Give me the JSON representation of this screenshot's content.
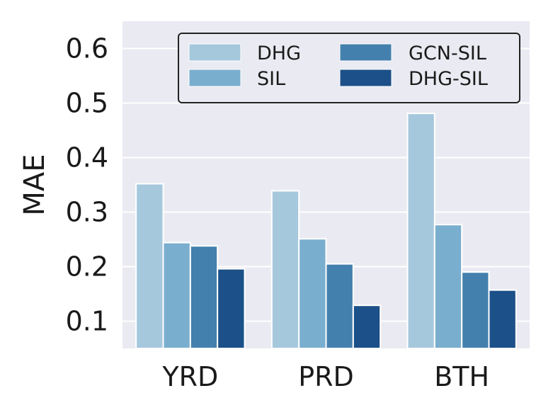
{
  "chart_data": {
    "type": "bar",
    "title": "",
    "xlabel": "",
    "ylabel": "MAE",
    "categories": [
      "YRD",
      "PRD",
      "BTH"
    ],
    "ylim": [
      0.05,
      0.65
    ],
    "yticks": [
      0.1,
      0.2,
      0.3,
      0.4,
      0.5,
      0.6
    ],
    "ytick_labels": [
      "0.1",
      "0.2",
      "0.3",
      "0.4",
      "0.5",
      "0.6"
    ],
    "grid": true,
    "legend_position": "top-right",
    "series": [
      {
        "name": "DHG",
        "color": "#a6c8dd",
        "values": [
          0.352,
          0.339,
          0.481
        ]
      },
      {
        "name": "SIL",
        "color": "#7aaecf",
        "values": [
          0.244,
          0.251,
          0.277
        ]
      },
      {
        "name": "GCN-SIL",
        "color": "#4480ad",
        "values": [
          0.238,
          0.205,
          0.19
        ]
      },
      {
        "name": "DHG-SIL",
        "color": "#1b5089",
        "values": [
          0.196,
          0.129,
          0.157
        ]
      }
    ]
  }
}
